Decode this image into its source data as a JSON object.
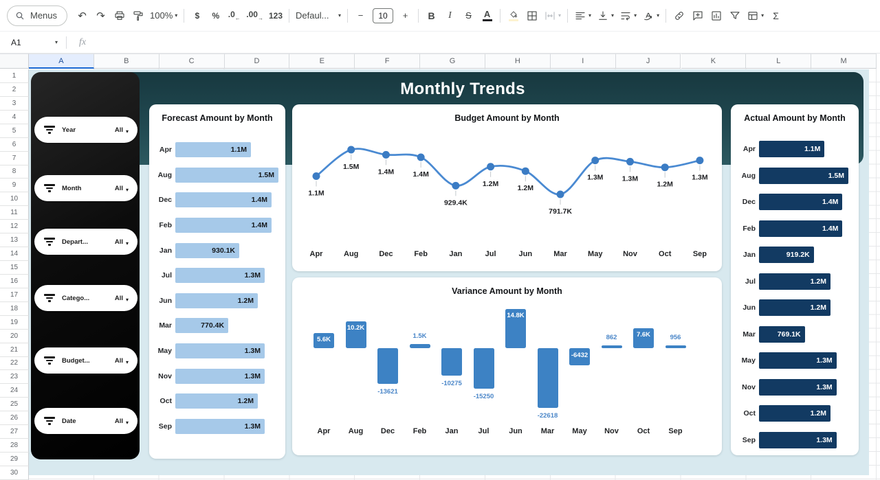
{
  "toolbar": {
    "menus": "Menus",
    "undo": "↶",
    "redo": "↷",
    "zoom": "100%",
    "currency": "$",
    "percent": "%",
    "dec_dec": ".0",
    "dec_dec_arrow": "←",
    "dec_inc": ".00",
    "dec_inc_arrow": "→",
    "fmt_123": "123",
    "font_family": "Defaul...",
    "minus": "−",
    "font_size": "10",
    "plus": "+",
    "bold": "B",
    "italic": "I",
    "strike": "S",
    "text_color": "A",
    "sigma": "Σ",
    "caret": "▾"
  },
  "formula_bar": {
    "cell_ref": "A1",
    "fx": "fx"
  },
  "grid": {
    "columns": [
      "A",
      "B",
      "C",
      "D",
      "E",
      "F",
      "G",
      "H",
      "I",
      "J",
      "K",
      "L",
      "M"
    ],
    "rows": [
      "1",
      "2",
      "3",
      "4",
      "5",
      "6",
      "7",
      "8",
      "9",
      "10",
      "11",
      "12",
      "13",
      "14",
      "15",
      "16",
      "17",
      "18",
      "19",
      "20",
      "21",
      "22",
      "23",
      "24",
      "25",
      "26",
      "27",
      "28",
      "29",
      "30"
    ],
    "selected_cell": "A1",
    "selected_column": "A"
  },
  "dashboard": {
    "title": "Monthly Trends",
    "filters": [
      {
        "label": "Year",
        "value": "All"
      },
      {
        "label": "Month",
        "value": "All"
      },
      {
        "label": "Depart...",
        "value": "All"
      },
      {
        "label": "Catego...",
        "value": "All"
      },
      {
        "label": "Budget...",
        "value": "All"
      },
      {
        "label": "Date",
        "value": "All"
      }
    ],
    "colors": {
      "background": "#d8e9ef",
      "band_top": "#17383f",
      "band_bottom": "#2c5960",
      "sidebar": "#0a0a0a",
      "forecast_bar": "#a6c9e9",
      "actual_bar": "#123a62",
      "line": "#4a8ad2",
      "variance_bar": "#3d82c4",
      "label_blue": "#4a86c8"
    }
  },
  "chart_data": [
    {
      "id": "forecast",
      "type": "bar",
      "orientation": "horizontal",
      "title": "Forecast Amount by Month",
      "categories": [
        "Apr",
        "Aug",
        "Dec",
        "Feb",
        "Jan",
        "Jul",
        "Jun",
        "Mar",
        "May",
        "Nov",
        "Oct",
        "Sep"
      ],
      "values": [
        1100000,
        1500000,
        1400000,
        1400000,
        930100,
        1300000,
        1200000,
        770400,
        1300000,
        1300000,
        1200000,
        1300000
      ],
      "labels": [
        "1.1M",
        "1.5M",
        "1.4M",
        "1.4M",
        "930.1K",
        "1.3M",
        "1.2M",
        "770.4K",
        "1.3M",
        "1.3M",
        "1.2M",
        "1.3M"
      ],
      "xlim": [
        0,
        1500000
      ],
      "bar_color": "#a6c9e9",
      "label_color": "#15181b"
    },
    {
      "id": "budget",
      "type": "line",
      "title": "Budget Amount by Month",
      "categories": [
        "Apr",
        "Aug",
        "Dec",
        "Feb",
        "Jan",
        "Jul",
        "Jun",
        "Mar",
        "May",
        "Nov",
        "Oct",
        "Sep"
      ],
      "values": [
        1080000,
        1500000,
        1420000,
        1380000,
        929400,
        1230000,
        1160000,
        791700,
        1330000,
        1310000,
        1220000,
        1330000
      ],
      "labels": [
        "1.1M",
        "1.5M",
        "1.4M",
        "1.4M",
        "929.4K",
        "1.2M",
        "1.2M",
        "791.7K",
        "1.3M",
        "1.3M",
        "1.2M",
        "1.3M"
      ],
      "ylim": [
        700000,
        1600000
      ],
      "line_color": "#4a8ad2",
      "point_color": "#3b7cc4"
    },
    {
      "id": "variance",
      "type": "bar",
      "orientation": "vertical",
      "title": "Variance Amount by Month",
      "categories": [
        "Apr",
        "Aug",
        "Dec",
        "Feb",
        "Jan",
        "Jul",
        "Jun",
        "Mar",
        "May",
        "Nov",
        "Oct",
        "Sep"
      ],
      "values": [
        5600,
        10200,
        -13621,
        1500,
        -10275,
        -15250,
        14800,
        -22618,
        -6432,
        862,
        7600,
        956
      ],
      "labels": [
        "5.6K",
        "10.2K",
        "-13621",
        "1.5K",
        "-10275",
        "-15250",
        "14.8K",
        "-22618",
        "-6432",
        "862",
        "7.6K",
        "956"
      ],
      "label_styles": [
        "inside",
        "inside",
        "below",
        "above",
        "below",
        "below",
        "inside",
        "below",
        "inside",
        "above",
        "inside",
        "above"
      ],
      "ylim": [
        -23000,
        15000
      ],
      "bar_color": "#3d82c4",
      "inside_label_color": "#ffffff",
      "outside_label_color": "#4a86c8"
    },
    {
      "id": "actual",
      "type": "bar",
      "orientation": "horizontal",
      "title": "Actual Amount by Month",
      "categories": [
        "Apr",
        "Aug",
        "Dec",
        "Feb",
        "Jan",
        "Jul",
        "Jun",
        "Mar",
        "May",
        "Nov",
        "Oct",
        "Sep"
      ],
      "values": [
        1100000,
        1500000,
        1400000,
        1400000,
        919200,
        1200000,
        1200000,
        769100,
        1300000,
        1300000,
        1200000,
        1300000
      ],
      "labels": [
        "1.1M",
        "1.5M",
        "1.4M",
        "1.4M",
        "919.2K",
        "1.2M",
        "1.2M",
        "769.1K",
        "1.3M",
        "1.3M",
        "1.2M",
        "1.3M"
      ],
      "xlim": [
        0,
        1500000
      ],
      "bar_color": "#123a62",
      "label_color": "#ffffff"
    }
  ]
}
